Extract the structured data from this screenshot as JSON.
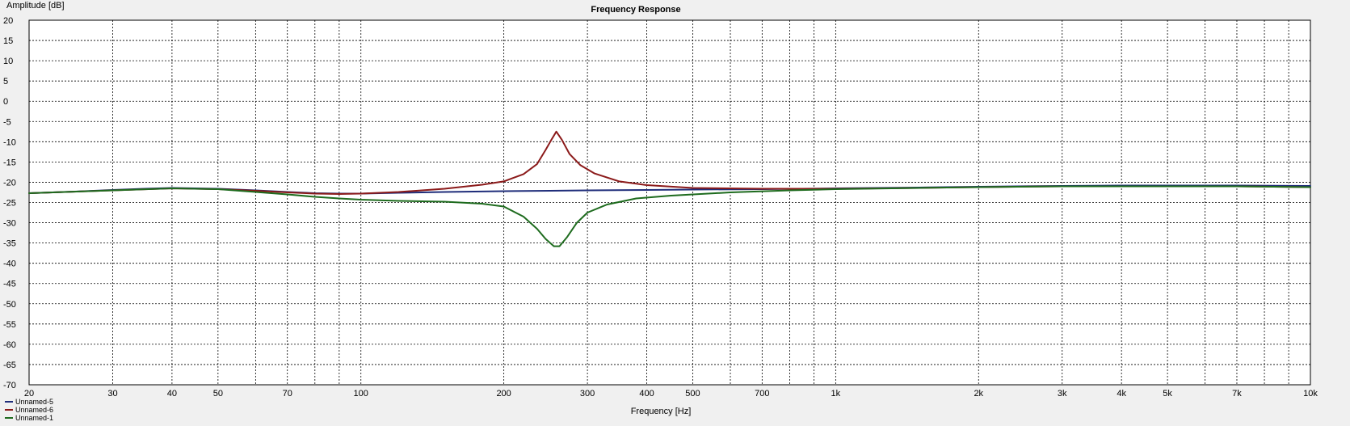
{
  "chart_data": {
    "type": "line",
    "title": "Frequency Response",
    "xlabel": "Frequency [Hz]",
    "ylabel": "Amplitude [dB]",
    "x_scale": "log",
    "xlim": [
      20,
      10000
    ],
    "ylim": [
      -70,
      20
    ],
    "grid": true,
    "legend_position": "bottom-left",
    "x_ticks": [
      {
        "value": 20,
        "label": "20"
      },
      {
        "value": 30,
        "label": "30"
      },
      {
        "value": 40,
        "label": "40"
      },
      {
        "value": 50,
        "label": "50"
      },
      {
        "value": 70,
        "label": "70"
      },
      {
        "value": 100,
        "label": "100"
      },
      {
        "value": 200,
        "label": "200"
      },
      {
        "value": 300,
        "label": "300"
      },
      {
        "value": 400,
        "label": "400"
      },
      {
        "value": 500,
        "label": "500"
      },
      {
        "value": 700,
        "label": "700"
      },
      {
        "value": 1000,
        "label": "1k"
      },
      {
        "value": 2000,
        "label": "2k"
      },
      {
        "value": 3000,
        "label": "3k"
      },
      {
        "value": 4000,
        "label": "4k"
      },
      {
        "value": 5000,
        "label": "5k"
      },
      {
        "value": 7000,
        "label": "7k"
      },
      {
        "value": 10000,
        "label": "10k"
      }
    ],
    "x_minor_ticks": [
      60,
      80,
      90,
      600,
      800,
      900,
      6000,
      8000,
      9000
    ],
    "y_ticks": [
      20,
      15,
      10,
      5,
      0,
      -5,
      -10,
      -15,
      -20,
      -25,
      -30,
      -35,
      -40,
      -45,
      -50,
      -55,
      -60,
      -65,
      -70
    ],
    "series": [
      {
        "name": "Unnamed-5",
        "color": "#1f2d7a",
        "points": [
          [
            20,
            -22.7
          ],
          [
            25,
            -22.3
          ],
          [
            30,
            -21.9
          ],
          [
            35,
            -21.6
          ],
          [
            40,
            -21.4
          ],
          [
            50,
            -21.6
          ],
          [
            60,
            -22.0
          ],
          [
            70,
            -22.4
          ],
          [
            80,
            -22.7
          ],
          [
            90,
            -22.8
          ],
          [
            100,
            -22.8
          ],
          [
            120,
            -22.6
          ],
          [
            150,
            -22.4
          ],
          [
            200,
            -22.2
          ],
          [
            250,
            -22.1
          ],
          [
            300,
            -22.0
          ],
          [
            400,
            -21.9
          ],
          [
            500,
            -21.8
          ],
          [
            700,
            -21.7
          ],
          [
            1000,
            -21.5
          ],
          [
            1500,
            -21.3
          ],
          [
            2000,
            -21.1
          ],
          [
            3000,
            -20.9
          ],
          [
            4000,
            -20.8
          ],
          [
            5000,
            -20.8
          ],
          [
            7000,
            -20.8
          ],
          [
            10000,
            -20.9
          ]
        ]
      },
      {
        "name": "Unnamed-6",
        "color": "#8b1a1a",
        "points": [
          [
            20,
            -22.7
          ],
          [
            30,
            -22.0
          ],
          [
            40,
            -21.5
          ],
          [
            50,
            -21.7
          ],
          [
            60,
            -22.1
          ],
          [
            70,
            -22.5
          ],
          [
            80,
            -22.8
          ],
          [
            90,
            -22.9
          ],
          [
            100,
            -22.8
          ],
          [
            120,
            -22.4
          ],
          [
            150,
            -21.6
          ],
          [
            180,
            -20.6
          ],
          [
            200,
            -19.8
          ],
          [
            220,
            -18.0
          ],
          [
            235,
            -15.5
          ],
          [
            245,
            -12.0
          ],
          [
            252,
            -9.5
          ],
          [
            258,
            -7.5
          ],
          [
            265,
            -9.5
          ],
          [
            275,
            -13.0
          ],
          [
            290,
            -15.8
          ],
          [
            310,
            -17.8
          ],
          [
            350,
            -19.8
          ],
          [
            400,
            -20.7
          ],
          [
            500,
            -21.4
          ],
          [
            700,
            -21.6
          ],
          [
            1000,
            -21.6
          ],
          [
            1500,
            -21.4
          ],
          [
            2000,
            -21.2
          ],
          [
            3000,
            -21.0
          ],
          [
            5000,
            -21.0
          ],
          [
            7000,
            -21.0
          ],
          [
            10000,
            -21.2
          ]
        ]
      },
      {
        "name": "Unnamed-1",
        "color": "#1e6b1e",
        "points": [
          [
            20,
            -22.7
          ],
          [
            30,
            -22.0
          ],
          [
            40,
            -21.5
          ],
          [
            50,
            -21.7
          ],
          [
            60,
            -22.4
          ],
          [
            70,
            -23.0
          ],
          [
            80,
            -23.6
          ],
          [
            90,
            -24.0
          ],
          [
            100,
            -24.3
          ],
          [
            120,
            -24.6
          ],
          [
            150,
            -24.8
          ],
          [
            180,
            -25.3
          ],
          [
            200,
            -26.0
          ],
          [
            220,
            -28.5
          ],
          [
            235,
            -31.5
          ],
          [
            245,
            -34.0
          ],
          [
            255,
            -35.8
          ],
          [
            262,
            -35.8
          ],
          [
            272,
            -33.5
          ],
          [
            285,
            -30.0
          ],
          [
            300,
            -27.5
          ],
          [
            330,
            -25.5
          ],
          [
            380,
            -24.0
          ],
          [
            450,
            -23.3
          ],
          [
            600,
            -22.5
          ],
          [
            800,
            -22.0
          ],
          [
            1000,
            -21.7
          ],
          [
            1500,
            -21.4
          ],
          [
            2000,
            -21.2
          ],
          [
            3000,
            -21.0
          ],
          [
            5000,
            -21.0
          ],
          [
            7000,
            -21.0
          ],
          [
            10000,
            -21.2
          ]
        ]
      }
    ]
  }
}
